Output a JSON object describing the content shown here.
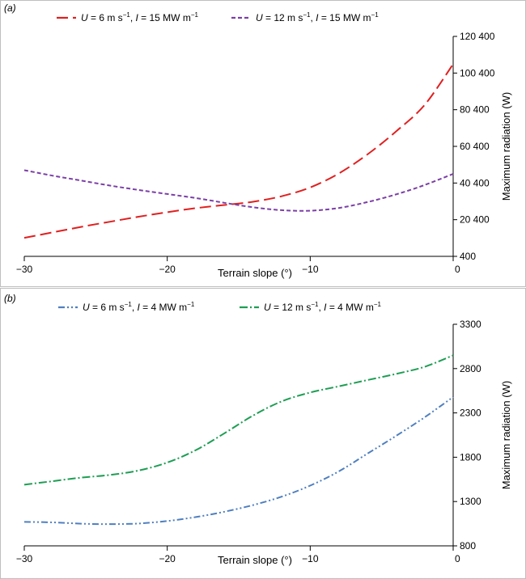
{
  "chart_data": [
    {
      "type": "line",
      "panel_label": "(a)",
      "xlabel": "Terrain slope (°)",
      "ylabel": "Maximum radiation (W)",
      "xlim": [
        -30,
        0
      ],
      "ylim": [
        400,
        120400
      ],
      "xticks": [
        -30,
        -20,
        -10,
        0
      ],
      "xtick_labels": [
        "−30",
        "−20",
        "−10",
        "0"
      ],
      "yticks": [
        400,
        20400,
        40400,
        60400,
        80400,
        100400,
        120400
      ],
      "ytick_labels": [
        "400",
        "20 400",
        "40 400",
        "60 400",
        "80 400",
        "100 400",
        "120 400"
      ],
      "legend_position": "top",
      "series": [
        {
          "name": "U = 6 m s−1, I = 15 MW m−1",
          "legend_parts": [
            "U",
            " = 6 m s",
            "−1",
            ", ",
            "I",
            " = 15 MW m",
            "−1"
          ],
          "color": "#e02020",
          "dash": "long-dash",
          "x": [
            -30,
            -28,
            -26,
            -24,
            -22,
            -20,
            -18,
            -16,
            -14,
            -12,
            -10,
            -8,
            -6,
            -4,
            -2,
            0
          ],
          "values": [
            10500,
            13500,
            16500,
            19300,
            22000,
            24500,
            26700,
            28400,
            30200,
            33200,
            38000,
            45600,
            56000,
            68500,
            83000,
            105300
          ]
        },
        {
          "name": "U = 12 m s−1, I = 15 MW m−1",
          "legend_parts": [
            "U",
            " = 12 m s",
            "−1",
            ", ",
            "I",
            " = 15 MW m",
            "−1"
          ],
          "color": "#7b3fa6",
          "dash": "short-dash",
          "x": [
            -30,
            -28,
            -26,
            -24,
            -22,
            -20,
            -18,
            -16,
            -14,
            -12,
            -10,
            -8,
            -6,
            -4,
            -2,
            0
          ],
          "values": [
            47400,
            44400,
            41700,
            39000,
            36600,
            34400,
            32200,
            29600,
            27200,
            25600,
            25300,
            26800,
            30000,
            34200,
            39300,
            45400
          ]
        }
      ]
    },
    {
      "type": "line",
      "panel_label": "(b)",
      "xlabel": "Terrain slope (°)",
      "ylabel": "Maximum radiation (W)",
      "xlim": [
        -30,
        0
      ],
      "ylim": [
        800,
        3300
      ],
      "xticks": [
        -30,
        -20,
        -10,
        0
      ],
      "xtick_labels": [
        "−30",
        "−20",
        "−10",
        "0"
      ],
      "yticks": [
        800,
        1300,
        1800,
        2300,
        2800,
        3300
      ],
      "ytick_labels": [
        "800",
        "1300",
        "1800",
        "2300",
        "2800",
        "3300"
      ],
      "legend_position": "top",
      "series": [
        {
          "name": "U = 6 m s−1, I = 4 MW m−1",
          "legend_parts": [
            "U",
            " = 6 m s",
            "−1",
            ", ",
            "I",
            " = 4 MW m",
            "−1"
          ],
          "color": "#4f7fc0",
          "dash": "dash-dot-dot",
          "x": [
            -30,
            -28,
            -26,
            -24,
            -22,
            -20,
            -18,
            -16,
            -14,
            -12,
            -10,
            -8,
            -6,
            -4,
            -2,
            0
          ],
          "values": [
            1070,
            1065,
            1050,
            1045,
            1052,
            1080,
            1125,
            1185,
            1260,
            1355,
            1480,
            1640,
            1840,
            2040,
            2250,
            2480
          ]
        },
        {
          "name": "U = 12 m s−1, I = 4 MW m−1",
          "legend_parts": [
            "U",
            " = 12 m s",
            "−1",
            ", ",
            "I",
            " = 4 MW m",
            "−1"
          ],
          "color": "#1e9e54",
          "dash": "dash-dot",
          "x": [
            -30,
            -28,
            -26,
            -24,
            -22,
            -20,
            -18,
            -16,
            -14,
            -12,
            -10,
            -8,
            -6,
            -4,
            -2,
            0
          ],
          "values": [
            1490,
            1530,
            1570,
            1600,
            1650,
            1740,
            1880,
            2070,
            2270,
            2430,
            2530,
            2600,
            2670,
            2740,
            2820,
            2950
          ]
        }
      ]
    }
  ]
}
